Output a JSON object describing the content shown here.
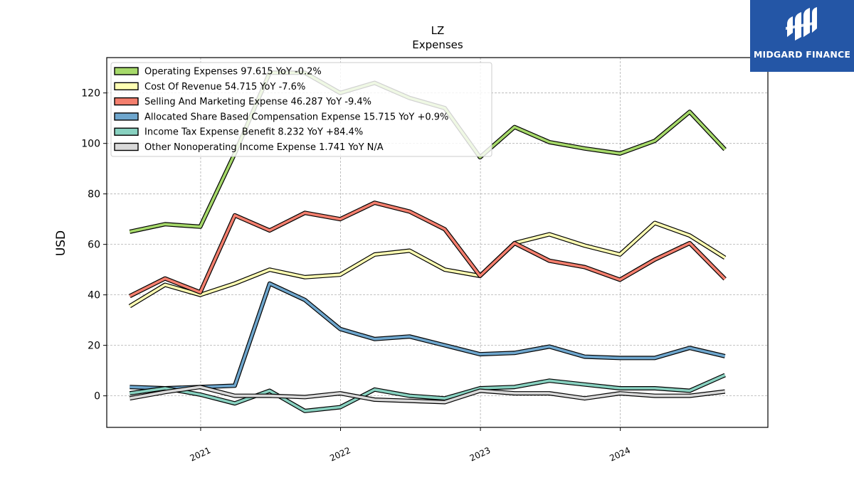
{
  "brand": {
    "name": "MIDGARD FINANCE",
    "logo_icon": "midgard-m-logo-icon",
    "background": "#2456a6"
  },
  "chart_data": {
    "type": "line",
    "title": "LZ",
    "subtitle": "Expenses",
    "ylabel": "USD",
    "xlabel": "",
    "ylim": [
      -12.5,
      134
    ],
    "yticks": [
      0,
      20,
      40,
      60,
      80,
      100,
      120
    ],
    "xlim": [
      "2020-05-01",
      "2025-01-20"
    ],
    "xticks": [
      {
        "date": "2021-01-01",
        "label": "2021"
      },
      {
        "date": "2022-01-01",
        "label": "2022"
      },
      {
        "date": "2023-01-01",
        "label": "2023"
      },
      {
        "date": "2024-01-01",
        "label": "2024"
      }
    ],
    "grid": true,
    "legend_position": "top-left",
    "x": [
      "2020-06-30",
      "2020-09-30",
      "2020-12-31",
      "2021-03-31",
      "2021-06-30",
      "2021-09-30",
      "2021-12-31",
      "2022-03-31",
      "2022-06-30",
      "2022-09-30",
      "2022-12-31",
      "2023-03-31",
      "2023-06-30",
      "2023-09-30",
      "2023-12-31",
      "2024-03-31",
      "2024-06-30",
      "2024-09-30"
    ],
    "series": [
      {
        "name": "Operating Expenses",
        "legend": "Operating Expenses  97.615 YoY -0.2%",
        "color": "#a6d96a",
        "values": [
          65,
          68,
          67,
          96,
          128,
          128,
          120,
          124,
          118,
          114,
          94.5,
          106.5,
          100.5,
          98,
          96,
          101,
          112.5,
          97.6
        ]
      },
      {
        "name": "Cost Of Revenue",
        "legend": "Cost Of Revenue  54.715 YoY -7.6%",
        "color": "#ffffb3",
        "values": [
          35.5,
          44,
          40,
          44.5,
          50,
          47,
          48,
          56,
          57.5,
          50,
          47.5,
          60.5,
          64,
          59.5,
          56,
          68.5,
          63.5,
          54.7
        ]
      },
      {
        "name": "Selling And Marketing Expense",
        "legend": "Selling And Marketing Expense  46.287 YoY -9.4%",
        "color": "#f47f6e",
        "values": [
          39.5,
          46.5,
          41,
          71.5,
          65.5,
          72.5,
          70,
          76.5,
          73,
          66,
          47.5,
          60.5,
          53.5,
          51,
          46,
          54,
          60.5,
          46.3
        ]
      },
      {
        "name": "Allocated Share Based Compensation Expense",
        "legend": "Allocated Share Based Compensation Expense  15.715 YoY +0.9%",
        "color": "#6ea6cd",
        "values": [
          3.5,
          3,
          3.5,
          4,
          44.5,
          38,
          26.5,
          22.5,
          23.5,
          20,
          16.5,
          17,
          19.5,
          15.5,
          15,
          15,
          19,
          15.7
        ]
      },
      {
        "name": "Income Tax Expense Benefit",
        "legend": "Income Tax Expense Benefit  8.232 YoY +84.4%",
        "color": "#88d1c0",
        "values": [
          1,
          3,
          0.5,
          -3,
          2,
          -6,
          -4.5,
          2.5,
          0,
          -1,
          3,
          3.5,
          6,
          4.5,
          3,
          3,
          2,
          8.2
        ]
      },
      {
        "name": "Other Nonoperating Income Expense",
        "legend": "Other Nonoperating Income Expense  1.741 YoY N/A",
        "color": "#d9d9d9",
        "values": [
          -1,
          1.5,
          3.5,
          0,
          0,
          -0.5,
          1,
          -1.5,
          -2,
          -2.5,
          2,
          1,
          1,
          -1,
          1,
          0,
          0,
          1.7
        ]
      }
    ]
  }
}
